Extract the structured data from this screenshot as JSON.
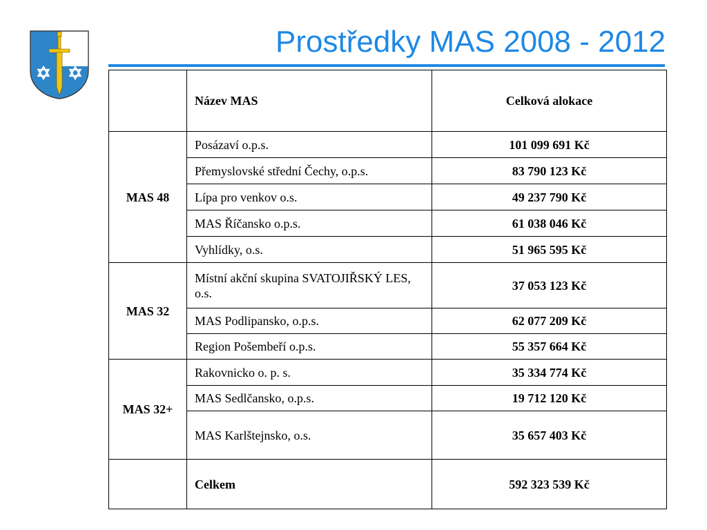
{
  "title": "Prostředky MAS 2008 - 2012",
  "colors": {
    "accent": "#1e88e5",
    "shield_blue": "#2e86c8",
    "sword_gold": "#f1c40f"
  },
  "logo": {
    "icon": "coat-of-arms-icon"
  },
  "table": {
    "headers": {
      "group": "",
      "name": "Název MAS",
      "amount": "Celková alokace"
    },
    "groups": [
      {
        "label": "MAS 48",
        "rows": [
          {
            "name": "Posázaví o.p.s.",
            "amount": "101 099 691 Kč"
          },
          {
            "name": "Přemyslovské střední Čechy, o.p.s.",
            "amount": "83 790 123 Kč"
          },
          {
            "name": "Lípa pro venkov o.s.",
            "amount": "49 237 790 Kč"
          },
          {
            "name": "MAS Říčansko o.p.s.",
            "amount": "61 038 046 Kč"
          },
          {
            "name": "Vyhlídky, o.s.",
            "amount": "51 965 595 Kč"
          }
        ]
      },
      {
        "label": "MAS 32",
        "rows": [
          {
            "name": "Místní akční skupina SVATOJIŘSKÝ LES, o.s.",
            "amount": "37 053 123 Kč"
          },
          {
            "name": "MAS Podlipansko, o.p.s.",
            "amount": "62 077 209 Kč"
          },
          {
            "name": "Region Pošembeří o.p.s.",
            "amount": "55 357 664 Kč"
          }
        ]
      },
      {
        "label": "MAS 32+",
        "rows": [
          {
            "name": "Rakovnicko o. p. s.",
            "amount": "35 334 774 Kč"
          },
          {
            "name": "MAS Sedlčansko, o.p.s.",
            "amount": "19 712 120 Kč"
          },
          {
            "name": "MAS Karlštejnsko, o.s.",
            "amount": "35 657 403 Kč"
          }
        ]
      }
    ],
    "total": {
      "label": "Celkem",
      "amount": "592 323 539 Kč"
    }
  }
}
